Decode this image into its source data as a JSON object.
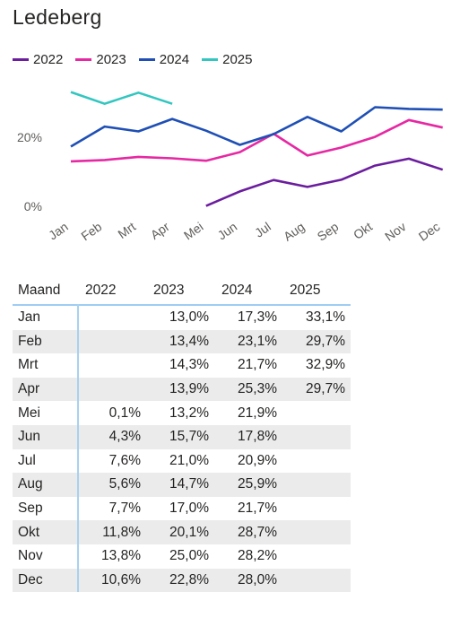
{
  "title": "Ledeberg",
  "legend": [
    {
      "label": "2022",
      "color": "#6b1d9e"
    },
    {
      "label": "2023",
      "color": "#e628a3"
    },
    {
      "label": "2024",
      "color": "#1f4fb5"
    },
    {
      "label": "2025",
      "color": "#33c6c0"
    }
  ],
  "chart_data": {
    "type": "line",
    "title": "Ledeberg",
    "categories": [
      "Jan",
      "Feb",
      "Mrt",
      "Apr",
      "Mei",
      "Jun",
      "Jul",
      "Aug",
      "Sep",
      "Okt",
      "Nov",
      "Dec"
    ],
    "series": [
      {
        "name": "2022",
        "color": "#6b1d9e",
        "values": [
          null,
          null,
          null,
          null,
          0.1,
          4.3,
          7.6,
          5.6,
          7.7,
          11.8,
          13.8,
          10.6
        ]
      },
      {
        "name": "2023",
        "color": "#e628a3",
        "values": [
          13.0,
          13.4,
          14.3,
          13.9,
          13.2,
          15.7,
          21.0,
          14.7,
          17.0,
          20.1,
          25.0,
          22.8
        ]
      },
      {
        "name": "2024",
        "color": "#1f4fb5",
        "values": [
          17.3,
          23.1,
          21.7,
          25.3,
          21.9,
          17.8,
          20.9,
          25.9,
          21.7,
          28.7,
          28.2,
          28.0
        ]
      },
      {
        "name": "2025",
        "color": "#33c6c0",
        "values": [
          33.1,
          29.7,
          32.9,
          29.7,
          null,
          null,
          null,
          null,
          null,
          null,
          null,
          null
        ]
      }
    ],
    "yticks": [
      "0%",
      "20%"
    ],
    "ylim": [
      0,
      36
    ],
    "legend_position": "top-left",
    "grid": false
  },
  "table": {
    "headers": [
      "Maand",
      "2022",
      "2023",
      "2024",
      "2025"
    ],
    "rows": [
      [
        "Jan",
        "",
        "13,0%",
        "17,3%",
        "33,1%"
      ],
      [
        "Feb",
        "",
        "13,4%",
        "23,1%",
        "29,7%"
      ],
      [
        "Mrt",
        "",
        "14,3%",
        "21,7%",
        "32,9%"
      ],
      [
        "Apr",
        "",
        "13,9%",
        "25,3%",
        "29,7%"
      ],
      [
        "Mei",
        "0,1%",
        "13,2%",
        "21,9%",
        ""
      ],
      [
        "Jun",
        "4,3%",
        "15,7%",
        "17,8%",
        ""
      ],
      [
        "Jul",
        "7,6%",
        "21,0%",
        "20,9%",
        ""
      ],
      [
        "Aug",
        "5,6%",
        "14,7%",
        "25,9%",
        ""
      ],
      [
        "Sep",
        "7,7%",
        "17,0%",
        "21,7%",
        ""
      ],
      [
        "Okt",
        "11,8%",
        "20,1%",
        "28,7%",
        ""
      ],
      [
        "Nov",
        "13,8%",
        "25,0%",
        "28,2%",
        ""
      ],
      [
        "Dec",
        "10,6%",
        "22,8%",
        "28,0%",
        ""
      ]
    ]
  }
}
